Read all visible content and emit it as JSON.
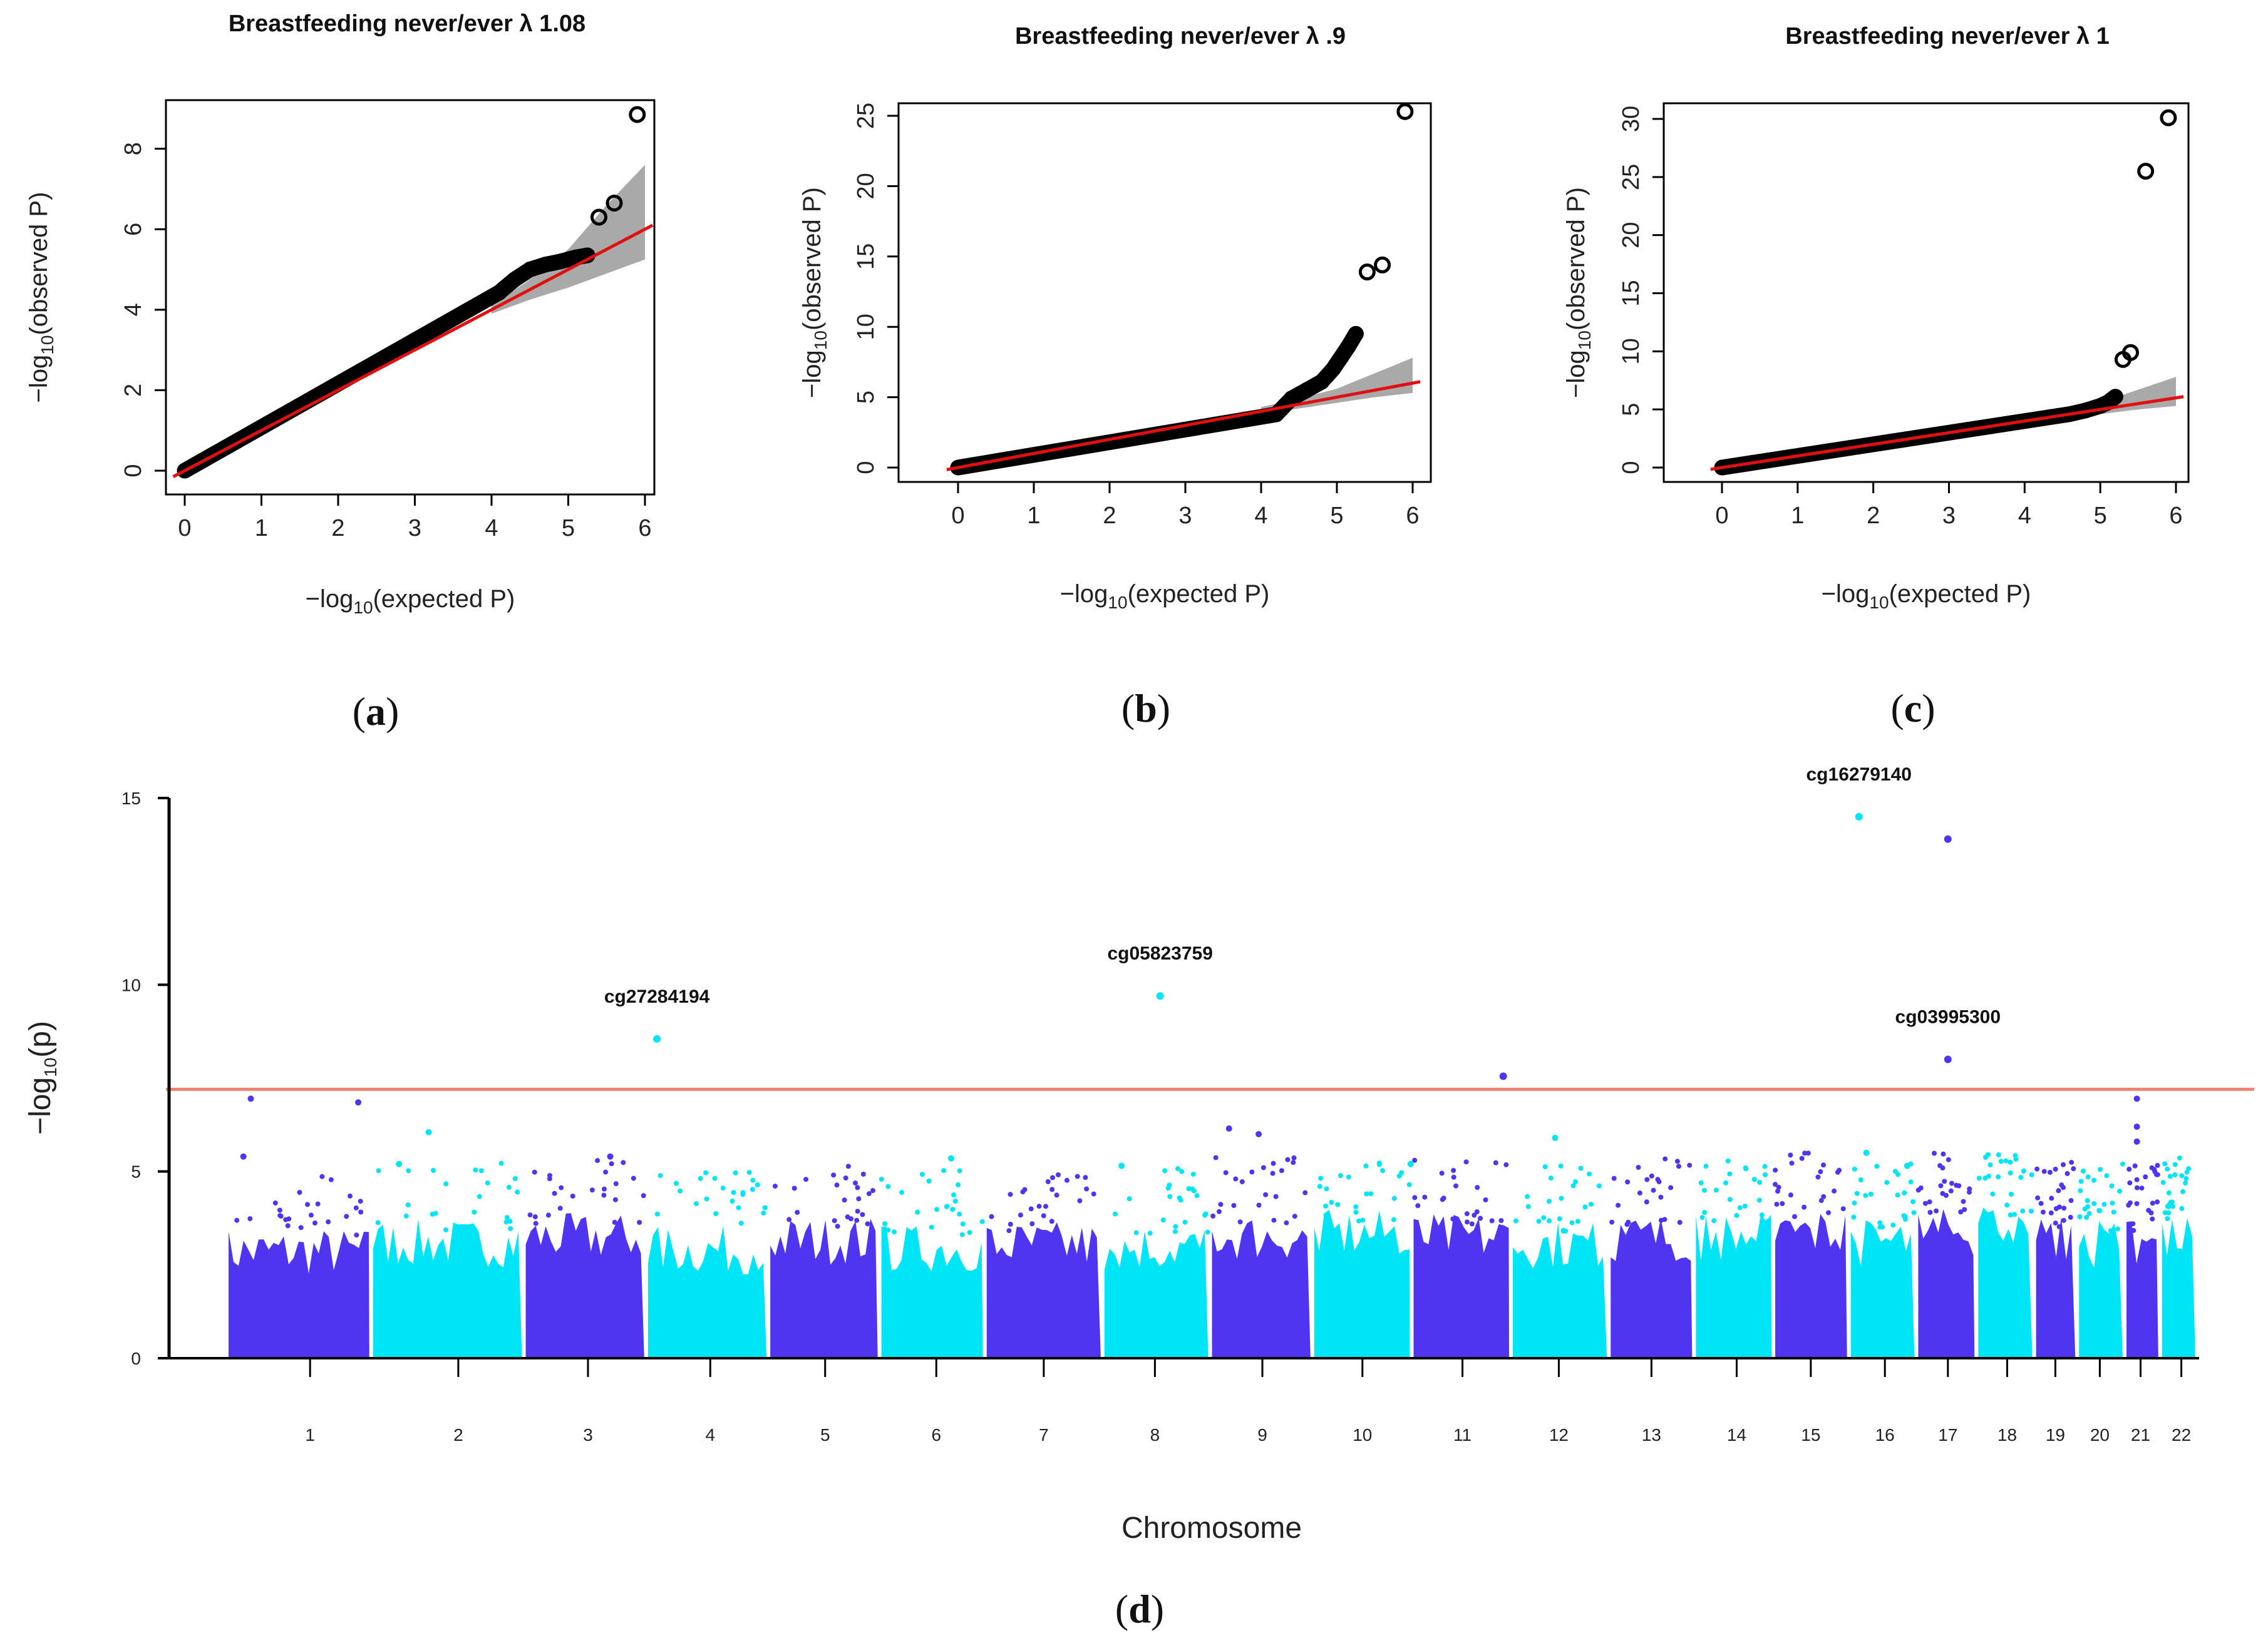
{
  "chart_data": [
    {
      "type": "scatter",
      "panel_label": "a",
      "title": "Breastfeeding never/ever  λ 1.08",
      "xlabel_main": "−log",
      "xlabel_sub": "10",
      "xlabel_end": "(expected P)",
      "ylabel_main": "−log",
      "ylabel_sub": "10",
      "ylabel_end": "(observed P)",
      "xlim": [
        0,
        6
      ],
      "ylim": [
        0,
        9
      ],
      "xticks": [
        0,
        1,
        2,
        3,
        4,
        5,
        6
      ],
      "yticks": [
        0,
        2,
        4,
        6,
        8
      ],
      "lambda": 1.08,
      "bulk_slope": 1.08,
      "bulk_end": 4.1,
      "bend": [
        [
          4.1,
          4.43
        ],
        [
          4.3,
          4.75
        ],
        [
          4.5,
          5.0
        ],
        [
          4.7,
          5.12
        ],
        [
          4.9,
          5.2
        ],
        [
          5.1,
          5.3
        ],
        [
          5.25,
          5.35
        ]
      ],
      "outliers": [
        [
          5.4,
          6.3
        ],
        [
          5.6,
          6.65
        ],
        [
          5.9,
          8.85
        ]
      ],
      "ci_upper": [
        [
          4.0,
          4.1
        ],
        [
          4.5,
          4.75
        ],
        [
          5.0,
          5.5
        ],
        [
          5.5,
          6.6
        ],
        [
          6.0,
          7.6
        ]
      ],
      "ci_lower": [
        [
          4.0,
          3.9
        ],
        [
          4.5,
          4.25
        ],
        [
          5.0,
          4.55
        ],
        [
          5.5,
          4.9
        ],
        [
          6.0,
          5.25
        ]
      ]
    },
    {
      "type": "scatter",
      "panel_label": "b",
      "title": "Breastfeeding never/ever  λ .9",
      "xlabel_main": "−log",
      "xlabel_sub": "10",
      "xlabel_end": "(expected P)",
      "ylabel_main": "−log",
      "ylabel_sub": "10",
      "ylabel_end": "(observed P)",
      "xlim": [
        0,
        6
      ],
      "ylim": [
        0,
        26
      ],
      "xticks": [
        0,
        1,
        2,
        3,
        4,
        5,
        6
      ],
      "yticks": [
        0,
        5,
        10,
        15,
        20,
        25
      ],
      "lambda": 0.9,
      "bulk_slope": 0.9,
      "bulk_end": 4.2,
      "bend": [
        [
          4.4,
          4.9
        ],
        [
          4.6,
          5.5
        ],
        [
          4.8,
          6.1
        ],
        [
          4.95,
          7.0
        ],
        [
          5.05,
          7.8
        ],
        [
          5.15,
          8.6
        ],
        [
          5.25,
          9.5
        ]
      ],
      "outliers": [
        [
          5.4,
          13.9
        ],
        [
          5.6,
          14.4
        ],
        [
          5.9,
          25.3
        ]
      ],
      "ci_upper": [
        [
          4.0,
          4.3
        ],
        [
          4.5,
          4.9
        ],
        [
          5.0,
          5.6
        ],
        [
          5.5,
          6.7
        ],
        [
          6.0,
          7.8
        ]
      ],
      "ci_lower": [
        [
          4.0,
          3.8
        ],
        [
          4.5,
          4.2
        ],
        [
          5.0,
          4.6
        ],
        [
          5.5,
          5.0
        ],
        [
          6.0,
          5.3
        ]
      ]
    },
    {
      "type": "scatter",
      "panel_label": "c",
      "title": "Breastfeeding never/ever  λ 1",
      "xlabel_main": "−log",
      "xlabel_sub": "10",
      "xlabel_end": "(expected P)",
      "ylabel_main": "−log",
      "ylabel_sub": "10",
      "ylabel_end": "(observed P)",
      "xlim": [
        0,
        6
      ],
      "ylim": [
        0,
        31
      ],
      "xticks": [
        0,
        1,
        2,
        3,
        4,
        5,
        6
      ],
      "yticks": [
        0,
        5,
        10,
        15,
        20,
        25,
        30
      ],
      "lambda": 1,
      "bulk_slope": 1.0,
      "bulk_end": 4.6,
      "bend": [
        [
          4.8,
          4.9
        ],
        [
          5.0,
          5.3
        ],
        [
          5.1,
          5.6
        ],
        [
          5.2,
          6.1
        ]
      ],
      "outliers": [
        [
          5.3,
          9.3
        ],
        [
          5.4,
          9.9
        ],
        [
          5.6,
          25.5
        ],
        [
          5.9,
          30.1
        ]
      ],
      "ci_upper": [
        [
          4.0,
          4.3
        ],
        [
          4.5,
          4.9
        ],
        [
          5.0,
          5.6
        ],
        [
          5.5,
          6.7
        ],
        [
          6.0,
          7.8
        ]
      ],
      "ci_lower": [
        [
          4.0,
          3.8
        ],
        [
          4.5,
          4.2
        ],
        [
          5.0,
          4.6
        ],
        [
          5.5,
          5.0
        ],
        [
          6.0,
          5.3
        ]
      ]
    },
    {
      "type": "scatter",
      "panel_label": "d",
      "xlabel": "Chromosome",
      "ylabel_main": "−log",
      "ylabel_sub": "10",
      "ylabel_end": "(p)",
      "ylim": [
        0,
        15
      ],
      "yticks": [
        0,
        5,
        10,
        15
      ],
      "threshold": 7.2,
      "colors": {
        "odd": "#4f35f0",
        "even": "#00e5f5",
        "threshold": "#f08070"
      },
      "chromosomes": [
        "1",
        "2",
        "3",
        "4",
        "5",
        "6",
        "7",
        "8",
        "9",
        "10",
        "11",
        "12",
        "13",
        "14",
        "15",
        "16",
        "17",
        "18",
        "19",
        "20",
        "21",
        "22"
      ],
      "chrom_starts": [
        0.0,
        0.195,
        0.401,
        0.566,
        0.731,
        0.881,
        1.023,
        1.182,
        1.327,
        1.465,
        1.599,
        1.733,
        1.865,
        1.98,
        2.087,
        2.189,
        2.28,
        2.361,
        2.439,
        2.497,
        2.561,
        2.609
      ],
      "chrom_ends": [
        0.195,
        0.401,
        0.566,
        0.731,
        0.881,
        1.023,
        1.182,
        1.327,
        1.465,
        1.599,
        1.733,
        1.865,
        1.98,
        2.087,
        2.189,
        2.28,
        2.361,
        2.439,
        2.497,
        2.561,
        2.609,
        2.659
      ],
      "chrom_tick_positions": [
        0.11,
        0.31,
        0.485,
        0.65,
        0.805,
        0.955,
        1.1,
        1.25,
        1.395,
        1.53,
        1.665,
        1.795,
        1.92,
        2.035,
        2.135,
        2.235,
        2.32,
        2.4,
        2.465,
        2.525,
        2.58,
        2.635
      ],
      "significant": [
        {
          "pos": 2.2,
          "p": 14.5,
          "label": "cg16279140"
        },
        {
          "pos": 2.32,
          "p": 13.9,
          "label": ""
        },
        {
          "pos": 1.257,
          "p": 9.7,
          "label": "cg05823759"
        },
        {
          "pos": 0.578,
          "p": 8.55,
          "label": "cg27284194"
        },
        {
          "pos": 2.32,
          "p": 8.0,
          "label": "cg03995300"
        },
        {
          "pos": 1.72,
          "p": 7.55,
          "label": ""
        }
      ],
      "near_threshold": [
        {
          "pos": 0.03,
          "p": 6.95
        },
        {
          "pos": 0.175,
          "p": 6.85
        },
        {
          "pos": 0.27,
          "p": 6.05
        },
        {
          "pos": 0.515,
          "p": 5.4
        },
        {
          "pos": 1.35,
          "p": 6.15
        },
        {
          "pos": 1.39,
          "p": 6.0
        },
        {
          "pos": 1.205,
          "p": 5.15
        },
        {
          "pos": 1.595,
          "p": 5.2
        },
        {
          "pos": 1.79,
          "p": 5.9
        },
        {
          "pos": 2.21,
          "p": 5.5
        },
        {
          "pos": 2.265,
          "p": 5.15
        },
        {
          "pos": 2.575,
          "p": 6.95
        },
        {
          "pos": 2.575,
          "p": 6.2
        },
        {
          "pos": 2.575,
          "p": 5.8
        },
        {
          "pos": 0.975,
          "p": 5.35
        },
        {
          "pos": 0.02,
          "p": 5.4
        },
        {
          "pos": 0.23,
          "p": 5.2
        }
      ]
    }
  ]
}
